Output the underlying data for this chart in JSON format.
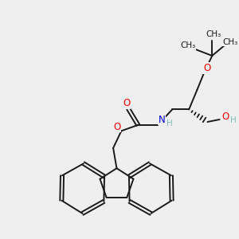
{
  "bg_color": "#efefef",
  "bond_color": "#1a1a1a",
  "o_color": "#ee0000",
  "n_color": "#0000cc",
  "h_color": "#7fbfbf",
  "font_size": 8.5,
  "small_font": 7.5,
  "xlim": [
    0,
    10
  ],
  "ylim": [
    0,
    10
  ],
  "figsize": [
    3.0,
    3.0
  ],
  "dpi": 100
}
